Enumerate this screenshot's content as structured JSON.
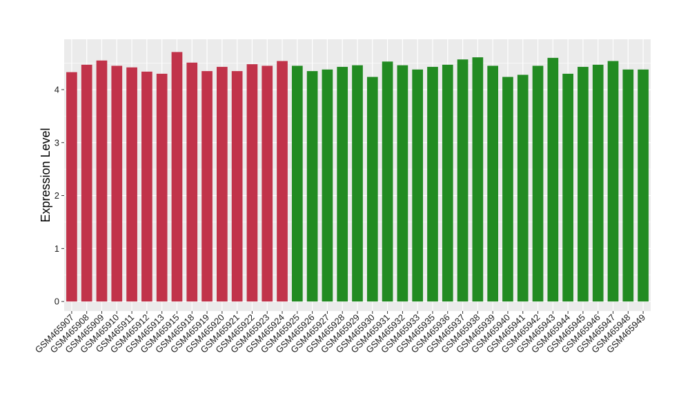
{
  "chart_data": {
    "type": "bar",
    "ylabel": "Expression Level",
    "xlabel": "",
    "ylim": [
      -0.18,
      4.95
    ],
    "yticks": [
      0,
      1,
      2,
      3,
      4
    ],
    "grid": true,
    "panel_background": "#ebebeb",
    "grid_color": "#ffffff",
    "colors": {
      "group_1": "#c1334a",
      "group_2": "#228b22"
    },
    "categories": [
      "GSM465907",
      "GSM465908",
      "GSM465909",
      "GSM465910",
      "GSM465911",
      "GSM465912",
      "GSM465913",
      "GSM465915",
      "GSM465918",
      "GSM465919",
      "GSM465920",
      "GSM465921",
      "GSM465922",
      "GSM465923",
      "GSM465924",
      "GSM465925",
      "GSM465926",
      "GSM465927",
      "GSM465928",
      "GSM465929",
      "GSM465930",
      "GSM465931",
      "GSM465932",
      "GSM465933",
      "GSM465935",
      "GSM465936",
      "GSM465937",
      "GSM465938",
      "GSM465939",
      "GSM465940",
      "GSM465941",
      "GSM465942",
      "GSM465943",
      "GSM465944",
      "GSM465945",
      "GSM465946",
      "GSM465947",
      "GSM465948",
      "GSM465949"
    ],
    "values": [
      4.33,
      4.47,
      4.55,
      4.45,
      4.42,
      4.34,
      4.3,
      4.71,
      4.51,
      4.35,
      4.43,
      4.35,
      4.48,
      4.45,
      4.54,
      4.45,
      4.35,
      4.38,
      4.43,
      4.46,
      4.24,
      4.53,
      4.46,
      4.38,
      4.43,
      4.47,
      4.57,
      4.61,
      4.45,
      4.24,
      4.28,
      4.45,
      4.6,
      4.3,
      4.43,
      4.47,
      4.54,
      4.38,
      4.38
    ],
    "groups": [
      "group_1",
      "group_1",
      "group_1",
      "group_1",
      "group_1",
      "group_1",
      "group_1",
      "group_1",
      "group_1",
      "group_1",
      "group_1",
      "group_1",
      "group_1",
      "group_1",
      "group_1",
      "group_2",
      "group_2",
      "group_2",
      "group_2",
      "group_2",
      "group_2",
      "group_2",
      "group_2",
      "group_2",
      "group_2",
      "group_2",
      "group_2",
      "group_2",
      "group_2",
      "group_2",
      "group_2",
      "group_2",
      "group_2",
      "group_2",
      "group_2",
      "group_2",
      "group_2",
      "group_2",
      "group_2"
    ]
  }
}
